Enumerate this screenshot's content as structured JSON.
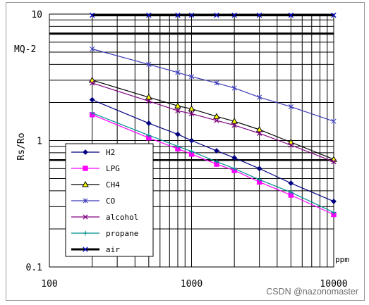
{
  "chart_data": {
    "type": "line",
    "title": "MQ-2",
    "ylabel": "Rs/Ro",
    "xlabel": "ppm",
    "x_scale": "log",
    "y_scale": "log",
    "xlim": [
      100,
      10000
    ],
    "ylim": [
      0.1,
      10
    ],
    "x_tick_labels": [
      "100",
      "1000",
      "10000"
    ],
    "y_tick_labels": [
      "0.1",
      "1",
      "10"
    ],
    "grid": true,
    "legend_position": "lower-left",
    "series": [
      {
        "name": "H2",
        "color": "#000080",
        "marker": "diamond",
        "x": [
          200,
          500,
          800,
          1000,
          1500,
          2000,
          3000,
          5000,
          10000
        ],
        "y": [
          2.1,
          1.37,
          1.12,
          1.0,
          0.83,
          0.73,
          0.6,
          0.46,
          0.33
        ]
      },
      {
        "name": "LPG",
        "color": "#ff00ff",
        "marker": "square",
        "x": [
          200,
          500,
          800,
          1000,
          1500,
          2000,
          3000,
          5000,
          10000
        ],
        "y": [
          1.6,
          1.05,
          0.86,
          0.78,
          0.65,
          0.58,
          0.47,
          0.37,
          0.26
        ]
      },
      {
        "name": "CH4",
        "color": "#000000",
        "marker": "triangle",
        "marker_fill": "#ffff00",
        "x": [
          200,
          500,
          800,
          1000,
          1500,
          2000,
          3000,
          5000,
          10000
        ],
        "y": [
          3.0,
          2.2,
          1.88,
          1.78,
          1.55,
          1.42,
          1.22,
          0.97,
          0.71
        ]
      },
      {
        "name": "CO",
        "color": "#3a3ab8",
        "marker": "star",
        "x": [
          200,
          500,
          800,
          1000,
          1500,
          2000,
          3000,
          5000,
          10000
        ],
        "y": [
          5.3,
          4.0,
          3.45,
          3.2,
          2.85,
          2.6,
          2.2,
          1.85,
          1.42
        ]
      },
      {
        "name": "alcohol",
        "color": "#800080",
        "marker": "x",
        "x": [
          200,
          500,
          800,
          1000,
          1500,
          2000,
          3000,
          5000,
          10000
        ],
        "y": [
          2.85,
          2.05,
          1.72,
          1.63,
          1.44,
          1.32,
          1.14,
          0.92,
          0.68
        ]
      },
      {
        "name": "propane",
        "color": "#009090",
        "marker": "plus",
        "x": [
          200,
          500,
          800,
          1000,
          1500,
          2000,
          3000,
          5000,
          10000
        ],
        "y": [
          1.65,
          1.1,
          0.9,
          0.82,
          0.68,
          0.6,
          0.49,
          0.39,
          0.27
        ]
      },
      {
        "name": "air",
        "color": "#000000",
        "marker_color": "#0000cc",
        "marker": "x",
        "bold": true,
        "x": [
          200,
          500,
          800,
          1000,
          1500,
          2000,
          3000,
          5000,
          10000
        ],
        "y": [
          9.8,
          9.8,
          9.8,
          9.8,
          9.8,
          9.8,
          9.8,
          9.8,
          9.8
        ]
      }
    ],
    "legend_labels": [
      "H2",
      "LPG",
      "CH4",
      "CO",
      "alcohol",
      "propane",
      "air"
    ]
  },
  "watermark": "CSDN @nazonomaster"
}
